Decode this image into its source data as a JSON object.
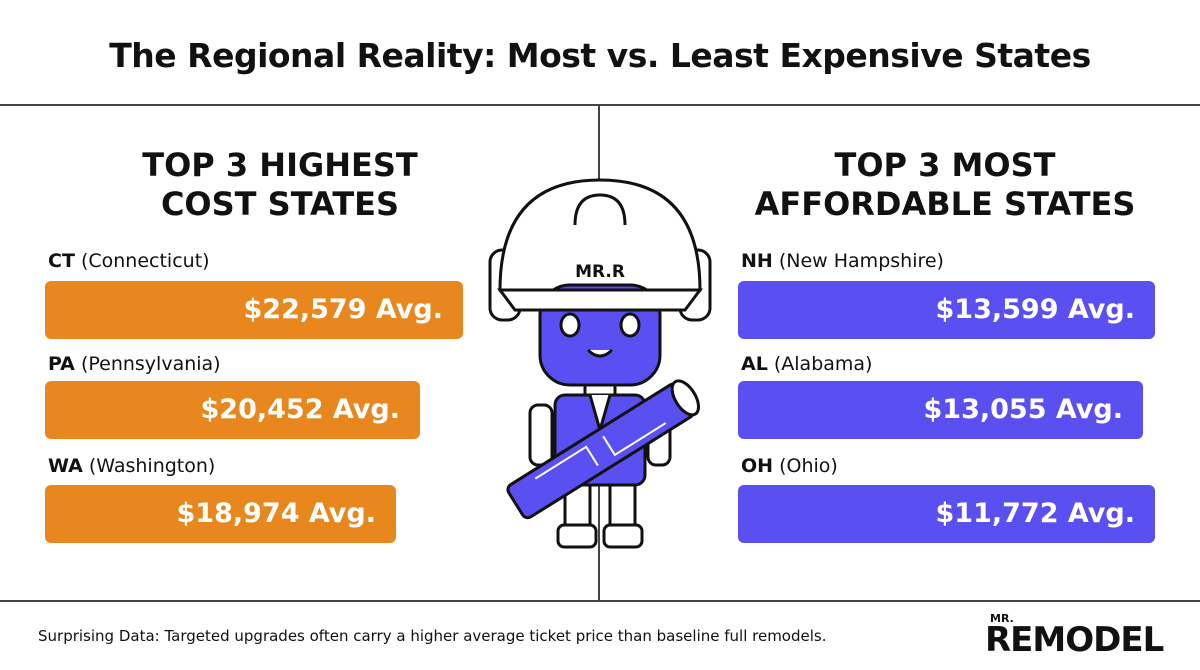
{
  "header": {
    "title": "The Regional Reality: Most vs. Least Expensive States"
  },
  "left": {
    "heading": [
      "TOP 3 HIGHEST",
      "COST STATES"
    ],
    "items": [
      {
        "code": "CT",
        "name": "(Connecticut)",
        "value": "$22,579 Avg."
      },
      {
        "code": "PA",
        "name": "(Pennsylvania)",
        "value": "$20,452 Avg."
      },
      {
        "code": "WA",
        "name": "(Washington)",
        "value": "$18,974 Avg."
      }
    ]
  },
  "right": {
    "heading": [
      "TOP 3 MOST",
      "AFFORDABLE STATES"
    ],
    "items": [
      {
        "code": "NH",
        "name": "(New Hampshire)",
        "value": "$13,599 Avg."
      },
      {
        "code": "AL",
        "name": "(Alabama)",
        "value": "$13,055 Avg."
      },
      {
        "code": "OH",
        "name": "(Ohio)",
        "value": "$11,772 Avg."
      }
    ]
  },
  "mascot": {
    "badge": "MR.R"
  },
  "footer": {
    "note": "Surprising Data: Targeted upgrades often carry a higher average ticket price than baseline full remodels.",
    "logo_small": "MR.",
    "logo": "REMODEL"
  }
}
